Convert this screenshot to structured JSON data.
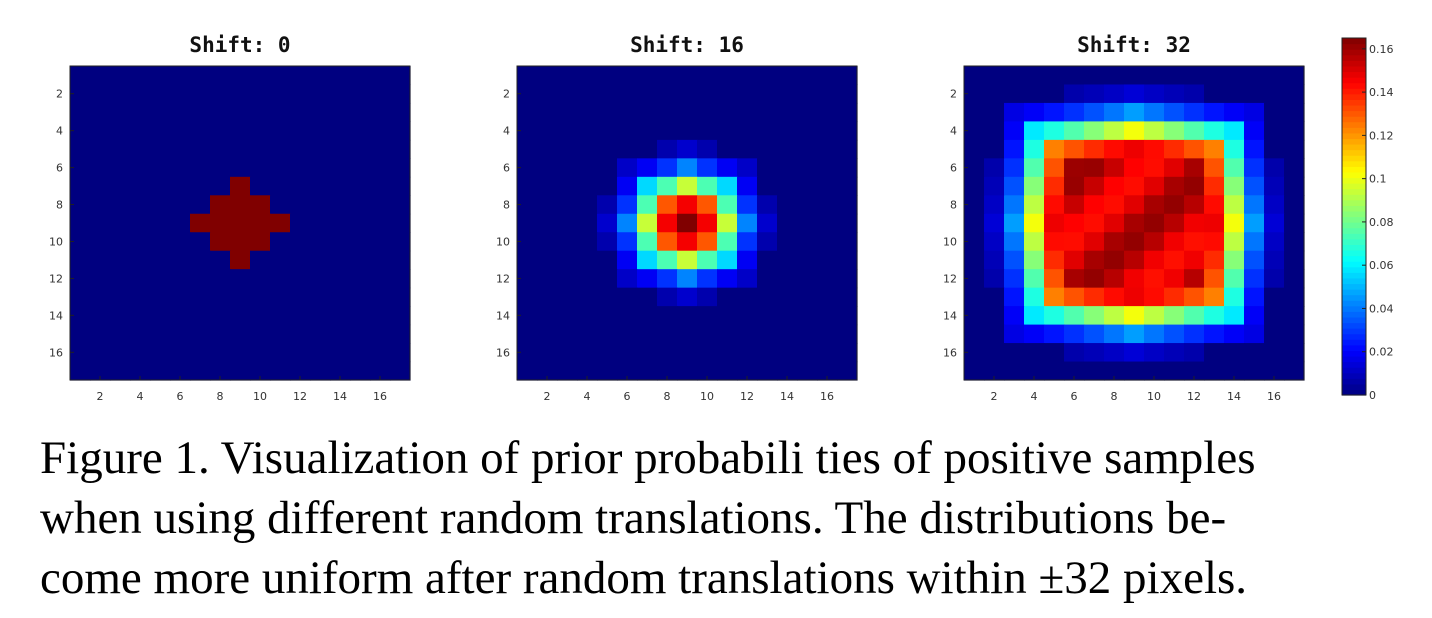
{
  "chart_data": {
    "type": "heatmap",
    "panels": [
      {
        "title": "Shift: 0",
        "shift": 0
      },
      {
        "title": "Shift: 16",
        "shift": 16
      },
      {
        "title": "Shift: 32",
        "shift": 32
      }
    ],
    "grid_size": 17,
    "xticks": [
      "2",
      "4",
      "6",
      "8",
      "10",
      "12",
      "14",
      "16"
    ],
    "yticks": [
      "2",
      "4",
      "6",
      "8",
      "10",
      "12",
      "14",
      "16"
    ],
    "colorbar": {
      "ticks": [
        "0",
        "0.02",
        "0.04",
        "0.06",
        "0.08",
        "0.1",
        "0.12",
        "0.14",
        "0.16"
      ],
      "range": [
        0,
        0.165
      ],
      "colormap": "jet"
    }
  },
  "caption": {
    "lines": [
      "Figure 1. Visualization of prior probabili ties of positive samples",
      "when using different random translations.  The distributions be-",
      "come more uniform after random translations within ±32 pixels."
    ]
  }
}
